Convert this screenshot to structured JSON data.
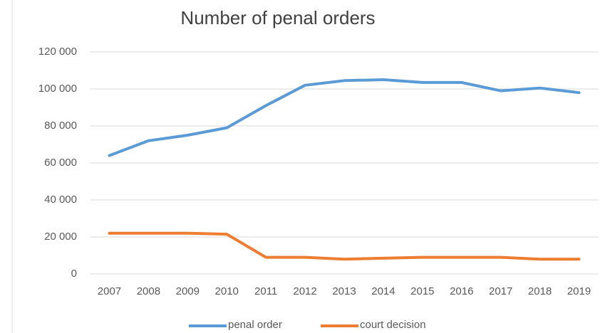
{
  "chart_data": {
    "type": "line",
    "title": "Number of penal orders",
    "categories": [
      "2007",
      "2008",
      "2009",
      "2010",
      "2011",
      "2012",
      "2013",
      "2014",
      "2015",
      "2016",
      "2017",
      "2018",
      "2019"
    ],
    "series": [
      {
        "name": "penal order",
        "color": "#5b9bd5",
        "values": [
          64000,
          72000,
          75000,
          79000,
          91000,
          102000,
          104500,
          105000,
          103500,
          103500,
          99000,
          100500,
          98000
        ]
      },
      {
        "name": "court decision",
        "color": "#ed7d31",
        "values": [
          22000,
          22000,
          22000,
          21500,
          9000,
          9000,
          8000,
          8500,
          9000,
          9000,
          9000,
          8000,
          8000
        ]
      }
    ],
    "ylim": [
      0,
      120000
    ],
    "yticks": [
      0,
      {
        "value": 20000,
        "label": "20 000"
      },
      {
        "value": 40000,
        "label": "40 000"
      },
      {
        "value": 60000,
        "label": "60 000"
      },
      {
        "value": 80000,
        "label": "80 000"
      },
      {
        "value": 100000,
        "label": "100 000"
      },
      {
        "value": 120000,
        "label": "120 000"
      }
    ],
    "grid": true
  }
}
